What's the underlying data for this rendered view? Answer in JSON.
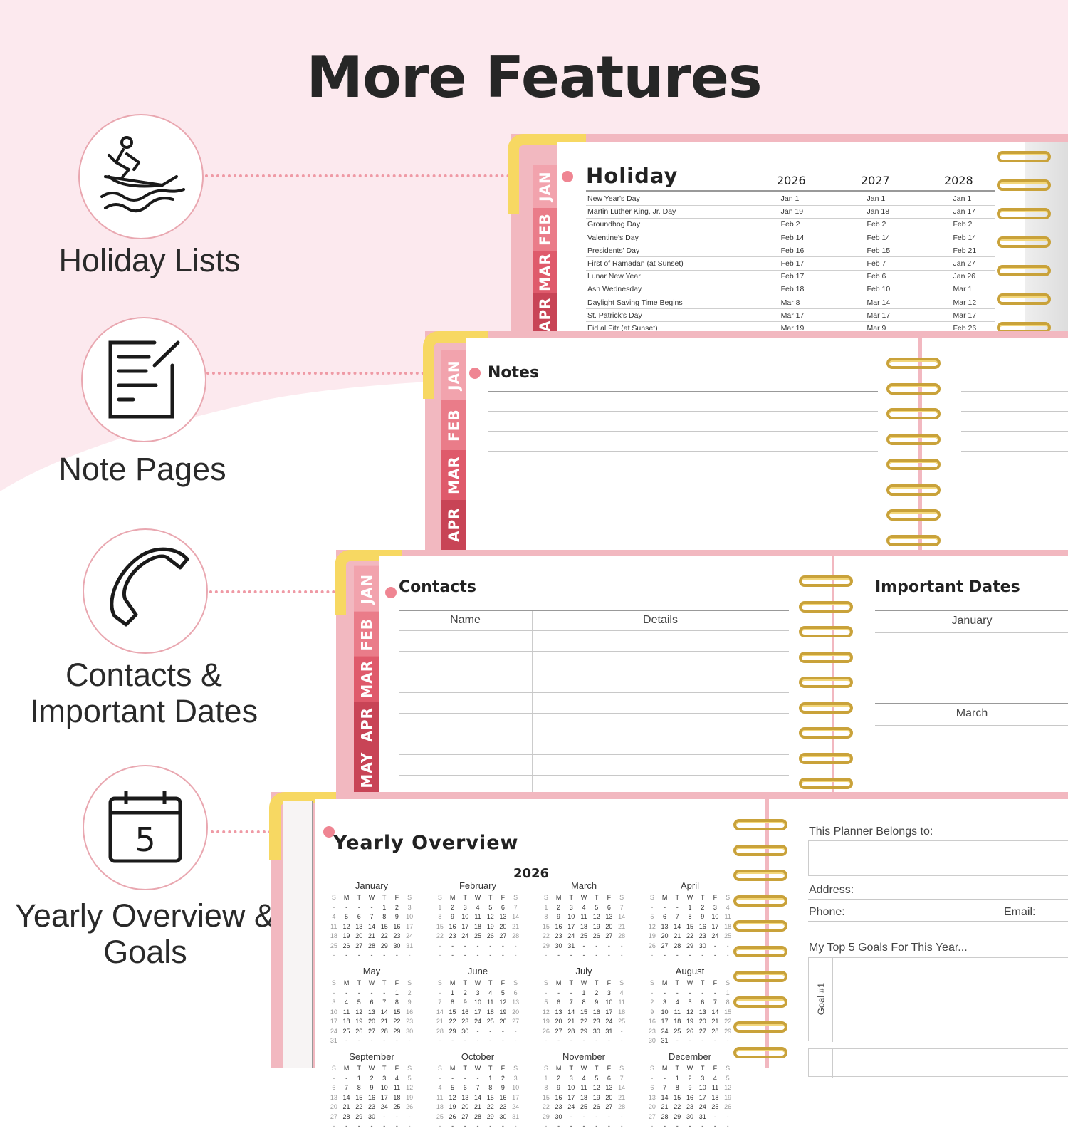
{
  "title": "More Features",
  "features": [
    {
      "label": "Holiday Lists",
      "icon": "jet-ski-icon"
    },
    {
      "label": "Note Pages",
      "icon": "note-page-icon"
    },
    {
      "label": "Contacts & Important Dates",
      "icon": "phone-icon"
    },
    {
      "label": "Yearly Overview & Goals",
      "icon": "calendar-5-icon"
    }
  ],
  "colors": {
    "background_pink": "#fce9ee",
    "cover_pink": "#f2b8c0",
    "accent_dot": "#ef8592",
    "corner_gold": "#f7d862",
    "coil_gold": "#c9a23a",
    "tab_colors": [
      "#f2a3ad",
      "#ea7c89",
      "#df5a6b",
      "#c84456"
    ]
  },
  "holiday": {
    "title": "Holiday",
    "tabs": [
      "JAN",
      "FEB",
      "MAR",
      "APR"
    ],
    "years": [
      "2026",
      "2027",
      "2028"
    ],
    "rows": [
      [
        "New Year's Day",
        "Jan 1",
        "Jan 1",
        "Jan 1"
      ],
      [
        "Martin Luther King, Jr. Day",
        "Jan 19",
        "Jan 18",
        "Jan 17"
      ],
      [
        "Groundhog Day",
        "Feb 2",
        "Feb 2",
        "Feb 2"
      ],
      [
        "Valentine's Day",
        "Feb 14",
        "Feb 14",
        "Feb 14"
      ],
      [
        "Presidents' Day",
        "Feb 16",
        "Feb 15",
        "Feb 21"
      ],
      [
        "First of Ramadan (at Sunset)",
        "Feb 17",
        "Feb 7",
        "Jan 27"
      ],
      [
        "Lunar New Year",
        "Feb 17",
        "Feb 6",
        "Jan 26"
      ],
      [
        "Ash Wednesday",
        "Feb 18",
        "Feb 10",
        "Mar 1"
      ],
      [
        "Daylight Saving Time Begins",
        "Mar 8",
        "Mar 14",
        "Mar 12"
      ],
      [
        "St. Patrick's Day",
        "Mar 17",
        "Mar 17",
        "Mar 17"
      ],
      [
        "Eid al Fitr (at Sunset)",
        "Mar 19",
        "Mar 9",
        "Feb 26"
      ]
    ]
  },
  "notes": {
    "title": "Notes",
    "tabs": [
      "JAN",
      "FEB",
      "MAR",
      "APR"
    ]
  },
  "contacts": {
    "title": "Contacts",
    "tabs": [
      "JAN",
      "FEB",
      "MAR",
      "APR",
      "MAY"
    ],
    "col_name": "Name",
    "col_details": "Details",
    "important_title": "Important Dates",
    "months": [
      "January",
      "March"
    ]
  },
  "yearly": {
    "title": "Yearly Overview",
    "year": "2026",
    "months": [
      "January",
      "February",
      "March",
      "April",
      "May",
      "June",
      "July",
      "August",
      "September",
      "October",
      "November",
      "December"
    ],
    "weekdays": [
      "S",
      "M",
      "T",
      "W",
      "T",
      "F",
      "S"
    ],
    "belongs": "This Planner Belongs to:",
    "address": "Address:",
    "phone": "Phone:",
    "email": "Email:",
    "goals_title": "My Top 5 Goals For This Year...",
    "goal1": "Goal #1"
  }
}
